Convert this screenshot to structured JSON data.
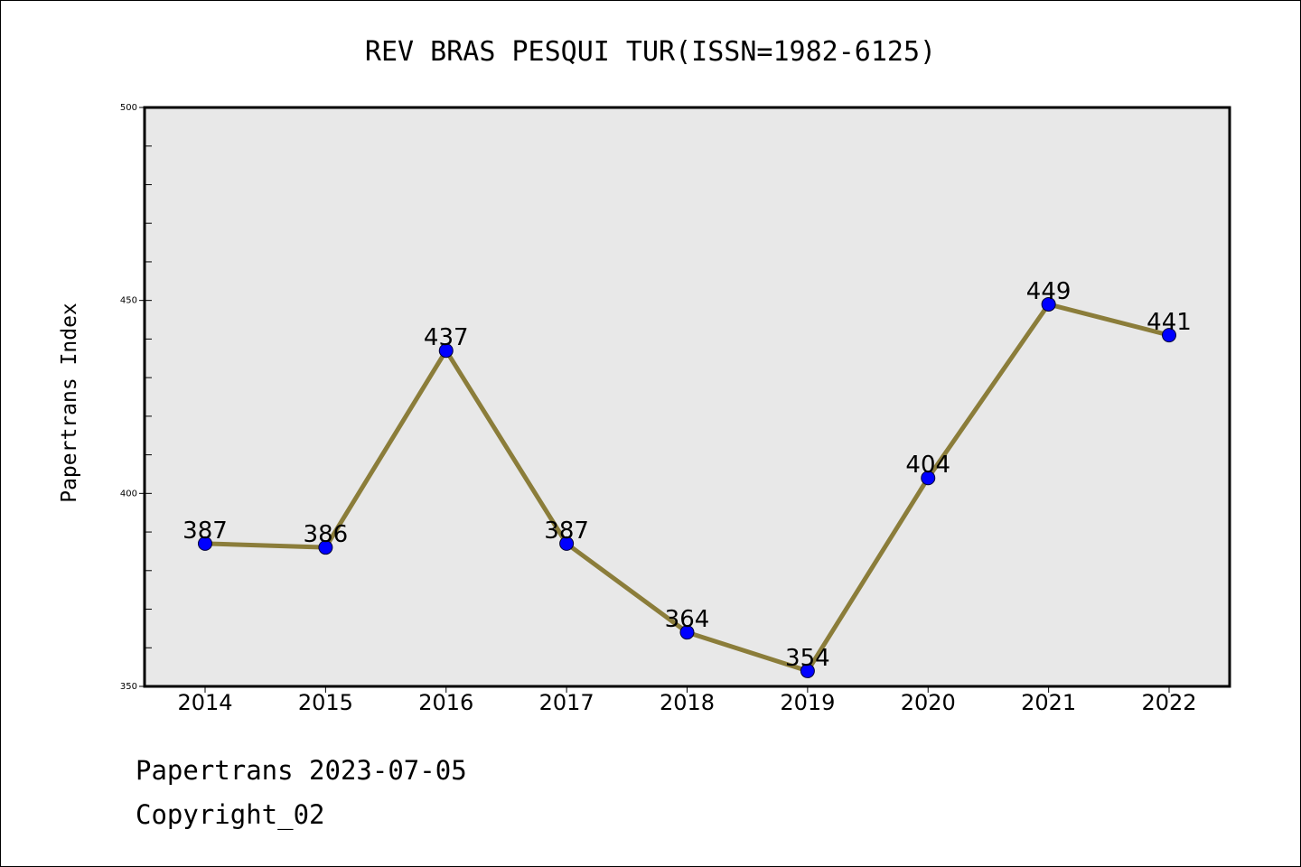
{
  "chart_data": {
    "type": "line",
    "title": "REV BRAS PESQUI TUR(ISSN=1982-6125)",
    "xlabel": "",
    "ylabel": "Papertrans Index",
    "categories": [
      "2014",
      "2015",
      "2016",
      "2017",
      "2018",
      "2019",
      "2020",
      "2021",
      "2022"
    ],
    "series": [
      {
        "values": [
          387,
          386,
          437,
          387,
          364,
          354,
          404,
          449,
          441
        ]
      }
    ],
    "data_labels": [
      "387",
      "386",
      "437",
      "387",
      "364",
      "354",
      "404",
      "449",
      "441"
    ],
    "ylim": [
      350,
      500
    ],
    "yticks": [
      350,
      400,
      450,
      500
    ],
    "grid": false,
    "colors": {
      "line": "#8B7D3A",
      "marker": "#0000FF",
      "plot_background": "#E8E8E8"
    }
  },
  "footer": {
    "line1": "Papertrans 2023-07-05",
    "line2": "Copyright_02"
  }
}
